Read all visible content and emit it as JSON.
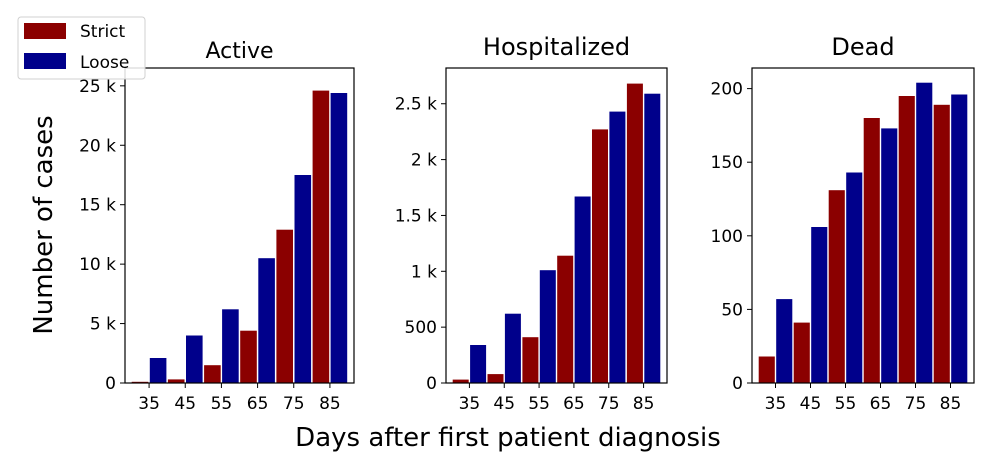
{
  "figure": {
    "ylabel": "Number of cases",
    "xlabel": "Days after first patient diagnosis"
  },
  "legend": {
    "placement": "top-left",
    "items": [
      {
        "label": "Strict",
        "color": "#8b0000"
      },
      {
        "label": "Loose",
        "color": "#00008b"
      }
    ]
  },
  "chart_data": [
    {
      "type": "bar",
      "title": "Active",
      "categories": [
        "35",
        "45",
        "55",
        "65",
        "75",
        "85"
      ],
      "series": [
        {
          "name": "Strict",
          "color": "#8b0000",
          "values": [
            100,
            300,
            1500,
            4400,
            12900,
            24600
          ]
        },
        {
          "name": "Loose",
          "color": "#00008b",
          "values": [
            2100,
            4000,
            6200,
            10500,
            17500,
            24400
          ]
        }
      ],
      "ylim": [
        0,
        26500
      ],
      "yticks": [
        0,
        5000,
        10000,
        15000,
        20000,
        25000
      ],
      "ytick_labels": [
        "0",
        "5 k",
        "10 k",
        "15 k",
        "20 k",
        "25 k"
      ]
    },
    {
      "type": "bar",
      "title": "Hospitalized",
      "categories": [
        "35",
        "45",
        "55",
        "65",
        "75",
        "85"
      ],
      "series": [
        {
          "name": "Strict",
          "color": "#8b0000",
          "values": [
            30,
            80,
            410,
            1140,
            2270,
            2680
          ]
        },
        {
          "name": "Loose",
          "color": "#00008b",
          "values": [
            340,
            620,
            1010,
            1670,
            2430,
            2590
          ]
        }
      ],
      "ylim": [
        0,
        2820
      ],
      "yticks": [
        0,
        500,
        1000,
        1500,
        2000,
        2500
      ],
      "ytick_labels": [
        "0",
        "500",
        "1 k",
        "1.5 k",
        "2 k",
        "2.5 k"
      ]
    },
    {
      "type": "bar",
      "title": "Dead",
      "categories": [
        "35",
        "45",
        "55",
        "65",
        "75",
        "85"
      ],
      "series": [
        {
          "name": "Strict",
          "color": "#8b0000",
          "values": [
            18,
            41,
            131,
            180,
            195,
            189
          ]
        },
        {
          "name": "Loose",
          "color": "#00008b",
          "values": [
            57,
            106,
            143,
            173,
            204,
            196
          ]
        }
      ],
      "ylim": [
        0,
        214
      ],
      "yticks": [
        0,
        50,
        100,
        150,
        200
      ],
      "ytick_labels": [
        "0",
        "50",
        "100",
        "150",
        "200"
      ]
    }
  ]
}
